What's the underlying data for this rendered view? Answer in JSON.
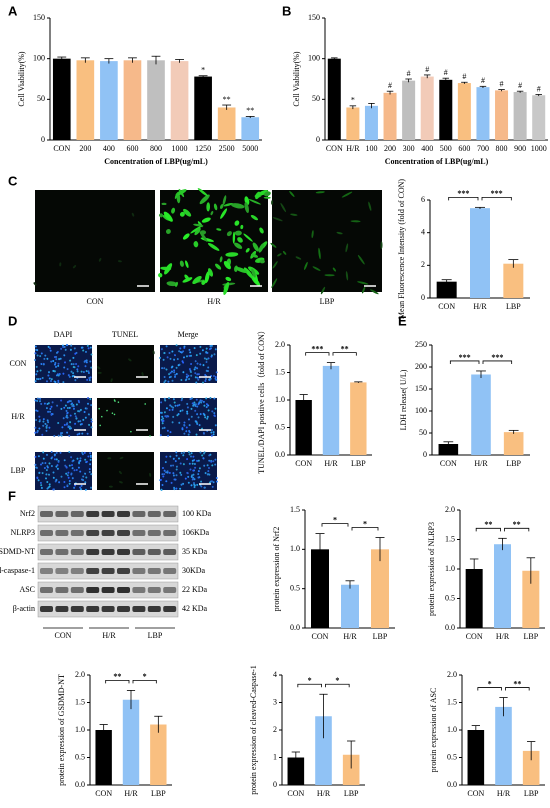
{
  "panel_labels": [
    "A",
    "B",
    "C",
    "D",
    "E",
    "F"
  ],
  "fluorescence_images": [
    "CON",
    "H/R",
    "LBP"
  ],
  "tunel_images": {
    "columns": [
      "DAPI",
      "TUNEL",
      "Merge"
    ],
    "rows": [
      "CON",
      "H/R",
      "LBP"
    ]
  },
  "western_blot": {
    "proteins": [
      "Nrf2",
      "NLRP3",
      "GSDMD-NT",
      "cleaved-caspase-1",
      "ASC",
      "β-actin"
    ],
    "sizes": [
      "100 KDa",
      "106KDa",
      "35 KDa",
      "30KDa",
      "22 KDa",
      "42 KDa"
    ],
    "groups": [
      "CON",
      "H/R",
      "LBP"
    ]
  },
  "chart_data": [
    {
      "type": "bar",
      "ylabel": "Cell Viability(%)",
      "xlabel": "Concentration of LBP(ug/mL)",
      "categories": [
        "CON",
        "200",
        "400",
        "600",
        "800",
        "1000",
        "1250",
        "2500",
        "5000"
      ],
      "values": [
        100,
        98,
        97,
        98,
        98,
        97,
        78,
        40,
        28
      ],
      "errors": [
        2,
        3,
        3,
        3,
        5,
        2,
        1,
        3,
        1
      ],
      "annotations": [
        null,
        null,
        null,
        null,
        null,
        null,
        "*",
        "**",
        "**"
      ],
      "colors": [
        "#000000",
        "#f9bf80",
        "#90c2f5",
        "#f6b98a",
        "#bfbfbf",
        "#f2cbb8",
        "#000000",
        "#f9bf80",
        "#90c2f5"
      ],
      "ylim": [
        0,
        150
      ],
      "yticks": [
        0,
        50,
        100,
        150
      ]
    },
    {
      "type": "bar",
      "ylabel": "Cell Viability(%)",
      "xlabel": "Concentration of LBP(ug/mL)",
      "categories": [
        "CON",
        "H/R",
        "100",
        "200",
        "300",
        "400",
        "500",
        "600",
        "700",
        "800",
        "900",
        "1000"
      ],
      "values": [
        100,
        40,
        42,
        58,
        73,
        78,
        74,
        70,
        65,
        61,
        59,
        55
      ],
      "errors": [
        1,
        2,
        3,
        2,
        2,
        2,
        2,
        1,
        1,
        1,
        1,
        1
      ],
      "annotations": [
        null,
        "*",
        null,
        "#",
        "#",
        "#",
        "#",
        "#",
        "#",
        "#",
        "#",
        "#"
      ],
      "colors": [
        "#000000",
        "#f9bf80",
        "#90c2f5",
        "#f6b98a",
        "#bfbfbf",
        "#f2cbb8",
        "#000000",
        "#f9bf80",
        "#90c2f5",
        "#f6b98a",
        "#bfbfbf",
        "#c8c8c8"
      ],
      "ylim": [
        0,
        150
      ],
      "yticks": [
        0,
        50,
        100,
        150
      ]
    },
    {
      "type": "bar",
      "ylabel": "Mean Fluorescence Intensity (fold of CON)",
      "categories": [
        "CON",
        "H/R",
        "LBP"
      ],
      "values": [
        1.0,
        5.5,
        2.1
      ],
      "errors": [
        0.12,
        0.05,
        0.25
      ],
      "colors": [
        "#000000",
        "#90c2f5",
        "#f9bf80"
      ],
      "significance": [
        "***",
        "***"
      ],
      "ylim": [
        0,
        6
      ],
      "yticks": [
        0,
        2,
        4,
        6
      ]
    },
    {
      "type": "bar",
      "ylabel": "TUNEL/DAPI positive cells（fold of CON）",
      "categories": [
        "CON",
        "H/R",
        "LBP"
      ],
      "values": [
        1.0,
        1.62,
        1.32
      ],
      "errors": [
        0.1,
        0.06,
        0.01
      ],
      "colors": [
        "#000000",
        "#90c2f5",
        "#f9bf80"
      ],
      "significance": [
        "***",
        "**"
      ],
      "ylim": [
        0,
        2.0
      ],
      "yticks": [
        {
          "value": 0,
          "label": "0.0"
        },
        0.5,
        {
          "value": 1,
          "label": "1.0"
        },
        1.5,
        {
          "value": 2,
          "label": "2.0"
        }
      ]
    },
    {
      "type": "bar",
      "ylabel": "LDH release( U/L)",
      "categories": [
        "CON",
        "H/R",
        "LBP"
      ],
      "values": [
        25,
        183,
        52
      ],
      "errors": [
        5,
        8,
        4
      ],
      "colors": [
        "#000000",
        "#90c2f5",
        "#f9bf80"
      ],
      "significance": [
        "***",
        "***"
      ],
      "ylim": [
        0,
        250
      ],
      "yticks": [
        0,
        50,
        100,
        150,
        200,
        250
      ]
    },
    {
      "type": "bar",
      "ylabel": "protein expression of Nrf2",
      "categories": [
        "CON",
        "H/R",
        "LBP"
      ],
      "values": [
        1.0,
        0.55,
        1.0
      ],
      "errors": [
        0.2,
        0.05,
        0.15
      ],
      "colors": [
        "#000000",
        "#90c2f5",
        "#f9bf80"
      ],
      "significance": [
        "*",
        "*"
      ],
      "ylim": [
        0,
        1.5
      ],
      "yticks": [
        {
          "value": 0,
          "label": "0.0"
        },
        0.5,
        {
          "value": 1,
          "label": "1.0"
        },
        1.5
      ]
    },
    {
      "type": "bar",
      "ylabel": "protein expression of NLRP3",
      "categories": [
        "CON",
        "H/R",
        "LBP"
      ],
      "values": [
        1.0,
        1.42,
        0.97
      ],
      "errors": [
        0.17,
        0.1,
        0.22
      ],
      "colors": [
        "#000000",
        "#90c2f5",
        "#f9bf80"
      ],
      "significance": [
        "**",
        "**"
      ],
      "ylim": [
        0,
        2.0
      ],
      "yticks": [
        {
          "value": 0,
          "label": "0.0"
        },
        0.5,
        {
          "value": 1,
          "label": "1.0"
        },
        1.5,
        {
          "value": 2,
          "label": "2.0"
        }
      ]
    },
    {
      "type": "bar",
      "ylabel": "protein expression of GSDMD-NT",
      "categories": [
        "CON",
        "H/R",
        "LBP"
      ],
      "values": [
        1.0,
        1.55,
        1.1
      ],
      "errors": [
        0.1,
        0.17,
        0.15
      ],
      "colors": [
        "#000000",
        "#90c2f5",
        "#f9bf80"
      ],
      "significance": [
        "**",
        "*"
      ],
      "ylim": [
        0,
        2.0
      ],
      "yticks": [
        {
          "value": 0,
          "label": "0.0"
        },
        0.5,
        {
          "value": 1,
          "label": "1.0"
        },
        1.5,
        {
          "value": 2,
          "label": "2.0"
        }
      ]
    },
    {
      "type": "bar",
      "ylabel": "protein expression of cleaved-Caspase-1",
      "categories": [
        "CON",
        "H/R",
        "LBP"
      ],
      "values": [
        1.0,
        2.5,
        1.1
      ],
      "errors": [
        0.2,
        0.8,
        0.5
      ],
      "colors": [
        "#000000",
        "#90c2f5",
        "#f9bf80"
      ],
      "significance": [
        "*",
        "*"
      ],
      "ylim": [
        0,
        4
      ],
      "yticks": [
        0,
        1,
        2,
        3,
        4
      ]
    },
    {
      "type": "bar",
      "ylabel": "protein expression of ASC",
      "categories": [
        "CON",
        "H/R",
        "LBP"
      ],
      "values": [
        1.0,
        1.42,
        0.62
      ],
      "errors": [
        0.08,
        0.17,
        0.17
      ],
      "colors": [
        "#000000",
        "#90c2f5",
        "#f9bf80"
      ],
      "significance": [
        "*",
        "**"
      ],
      "ylim": [
        0,
        2.0
      ],
      "yticks": [
        {
          "value": 0,
          "label": "0.0"
        },
        0.5,
        {
          "value": 1,
          "label": "1.0"
        },
        1.5,
        {
          "value": 2,
          "label": "2.0"
        }
      ]
    }
  ]
}
